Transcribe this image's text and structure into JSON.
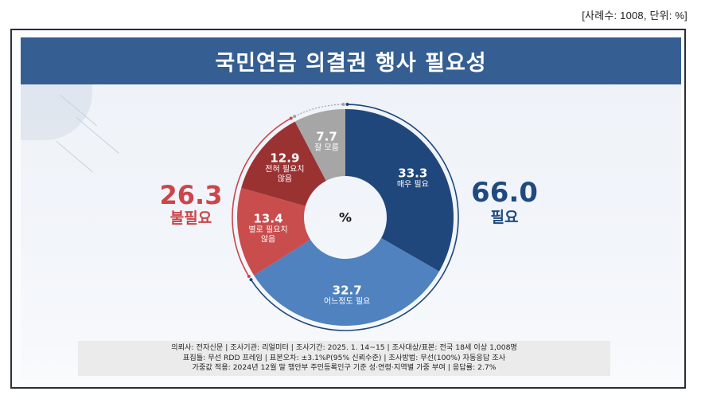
{
  "meta": "[사례수: 1008, 단위: %]",
  "title": "국민연금 의결권 행사 필요성",
  "center_unit": "%",
  "summary": {
    "unnecessary": {
      "value": "26.3",
      "label": "불필요",
      "color": "#c9464a"
    },
    "necessary": {
      "value": "66.0",
      "label": "필요",
      "color": "#1f4a7e"
    }
  },
  "segments": [
    {
      "value": "33.3",
      "label": "매우 필요",
      "color": "#1f477b"
    },
    {
      "value": "32.7",
      "label": "어느정도 필요",
      "color": "#4f82bf"
    },
    {
      "value": "13.4",
      "label": "별로 필요치 않음",
      "label_line1": "별로 필요치",
      "label_line2": "않음",
      "color": "#c94d4d"
    },
    {
      "value": "12.9",
      "label": "전혀 필요치 않음",
      "label_line1": "전혀 필요치",
      "label_line2": "않음",
      "color": "#9b3232"
    },
    {
      "value": "7.7",
      "label": "잘 모름",
      "color": "#a6a6a6"
    }
  ],
  "footnote": {
    "line1": "의뢰사: 전자신문 | 조사기관: 리얼미터  |  조사기간: 2025. 1. 14~15 | 조사대상/표본: 전국 18세 이상 1,008명",
    "line2": "표집틀: 무선 RDD 프레임 | 표본오차: ±3.1%P(95% 신뢰수준) | 조사방법: 무선(100%) 자동응답 조사",
    "line3": "가중값 적용: 2024년 12월 말 행안부 주민등록인구 기준 성·연령·지역별 가중 부여 | 응답률: 2.7%"
  },
  "chart_data": {
    "type": "pie",
    "title": "국민연금 의결권 행사 필요성",
    "subtitle": "[사례수: 1008, 단위: %]",
    "donut": true,
    "categories": [
      "매우 필요",
      "어느정도 필요",
      "별로 필요치 않음",
      "전혀 필요치 않음",
      "잘 모름"
    ],
    "values": [
      33.3,
      32.7,
      13.4,
      12.9,
      7.7
    ],
    "colors": [
      "#1f477b",
      "#4f82bf",
      "#c94d4d",
      "#9b3232",
      "#a6a6a6"
    ],
    "groups": [
      {
        "name": "필요",
        "value": 66.0,
        "members": [
          "매우 필요",
          "어느정도 필요"
        ]
      },
      {
        "name": "불필요",
        "value": 26.3,
        "members": [
          "별로 필요치 않음",
          "전혀 필요치 않음"
        ]
      }
    ],
    "center_label": "%"
  }
}
